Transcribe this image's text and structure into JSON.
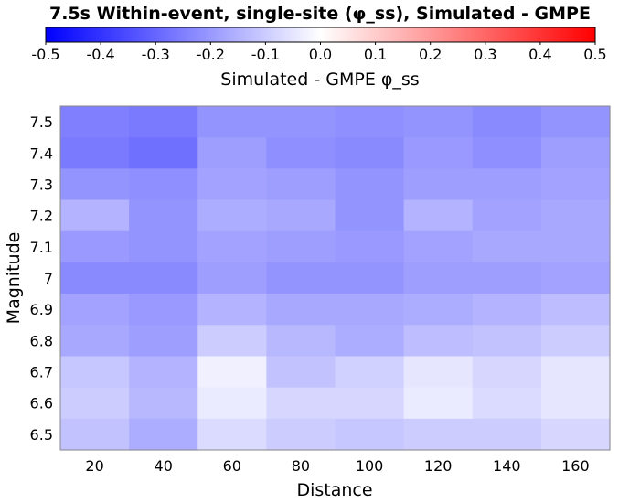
{
  "chart_data": {
    "type": "heatmap",
    "title": "7.5s Within-event, single-site (φ_ss), Simulated - GMPE",
    "xlabel": "Distance",
    "ylabel": "Magnitude",
    "colorbar": {
      "label": "Simulated - GMPE φ_ss",
      "min": -0.5,
      "max": 0.5,
      "ticks": [
        "-0.5",
        "-0.4",
        "-0.3",
        "-0.2",
        "-0.1",
        "0.0",
        "0.1",
        "0.2",
        "0.3",
        "0.4",
        "0.5"
      ],
      "low_color": "#0000ff",
      "mid_color": "#ffffff",
      "high_color": "#ff0000"
    },
    "x": [
      "20",
      "40",
      "60",
      "80",
      "100",
      "120",
      "140",
      "160"
    ],
    "y": [
      "7.5",
      "7.4",
      "7.3",
      "7.2",
      "7.1",
      "7",
      "6.9",
      "6.8",
      "6.7",
      "6.6",
      "6.5"
    ],
    "values": [
      [
        -0.25,
        -0.26,
        -0.21,
        -0.21,
        -0.22,
        -0.21,
        -0.23,
        -0.21
      ],
      [
        -0.26,
        -0.28,
        -0.19,
        -0.22,
        -0.23,
        -0.2,
        -0.22,
        -0.19
      ],
      [
        -0.21,
        -0.22,
        -0.18,
        -0.19,
        -0.21,
        -0.19,
        -0.19,
        -0.18
      ],
      [
        -0.15,
        -0.21,
        -0.16,
        -0.17,
        -0.21,
        -0.15,
        -0.18,
        -0.17
      ],
      [
        -0.2,
        -0.21,
        -0.18,
        -0.19,
        -0.2,
        -0.18,
        -0.17,
        -0.17
      ],
      [
        -0.23,
        -0.23,
        -0.19,
        -0.21,
        -0.21,
        -0.19,
        -0.19,
        -0.18
      ],
      [
        -0.18,
        -0.2,
        -0.15,
        -0.17,
        -0.17,
        -0.16,
        -0.15,
        -0.13
      ],
      [
        -0.17,
        -0.19,
        -0.1,
        -0.14,
        -0.16,
        -0.13,
        -0.12,
        -0.1
      ],
      [
        -0.11,
        -0.15,
        -0.03,
        -0.12,
        -0.09,
        -0.05,
        -0.08,
        -0.05
      ],
      [
        -0.1,
        -0.14,
        -0.04,
        -0.08,
        -0.08,
        -0.04,
        -0.07,
        -0.05
      ],
      [
        -0.12,
        -0.16,
        -0.07,
        -0.1,
        -0.11,
        -0.1,
        -0.1,
        -0.08
      ]
    ]
  }
}
